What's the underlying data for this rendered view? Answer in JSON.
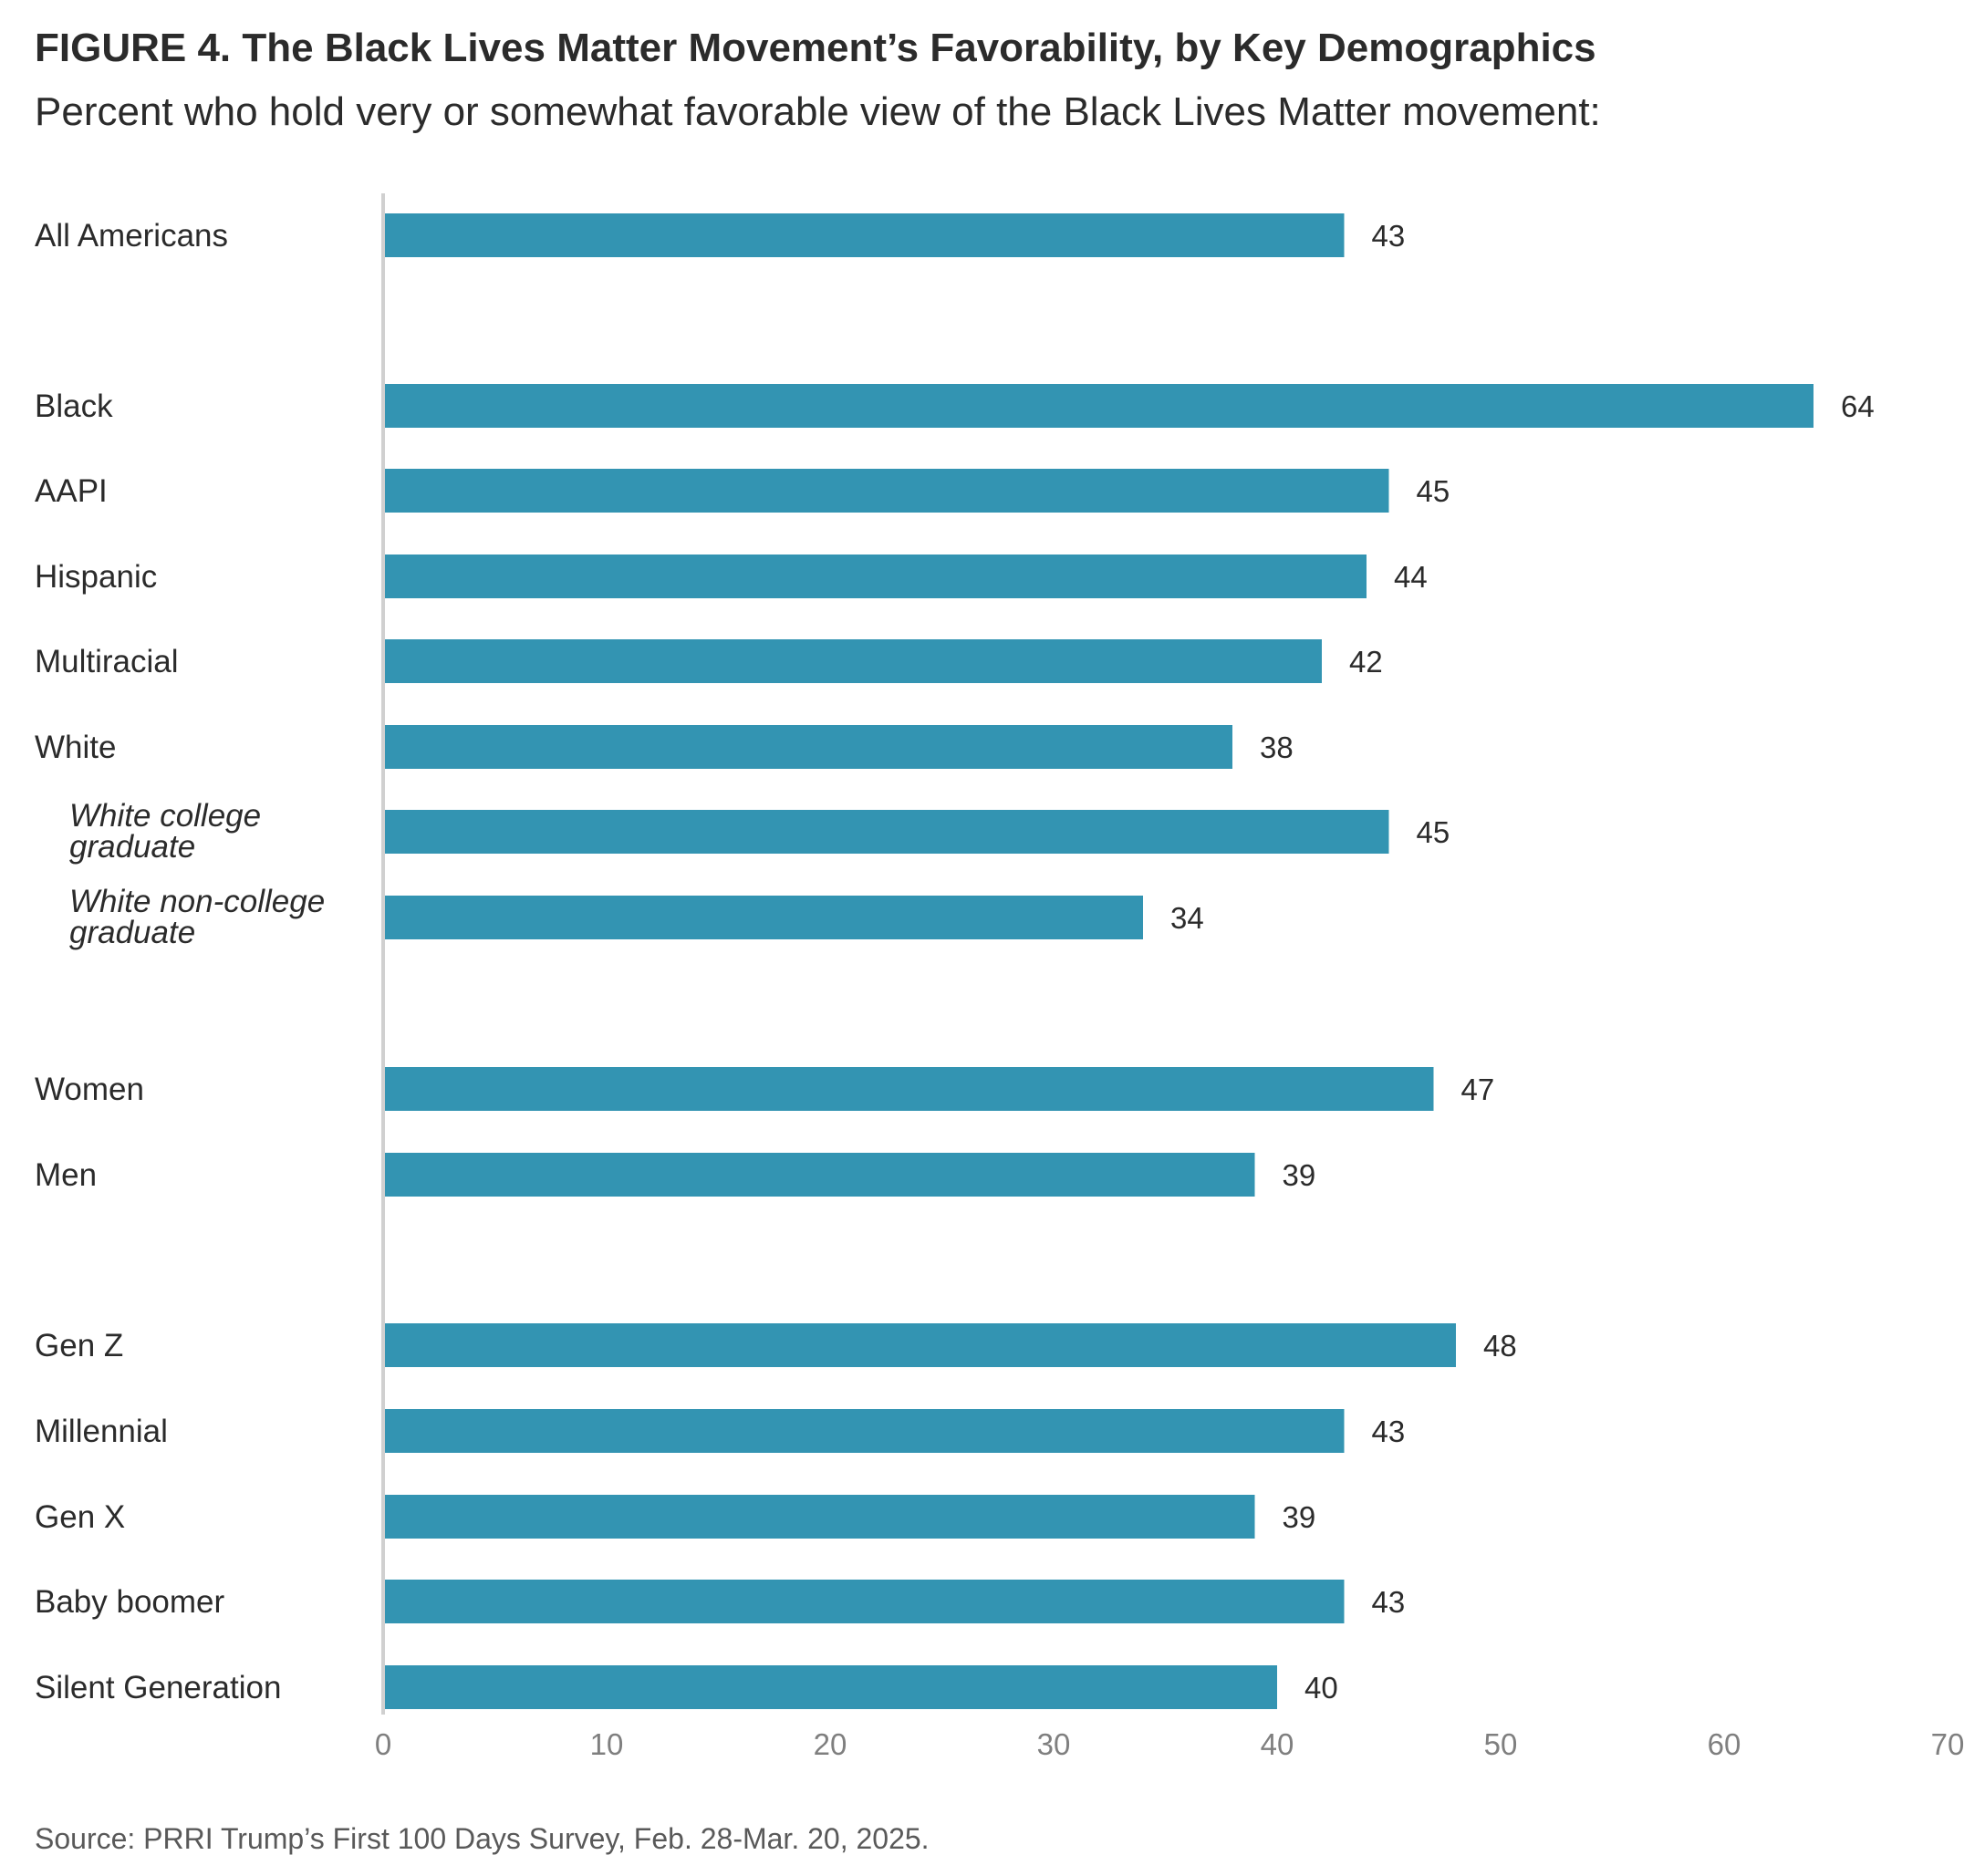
{
  "chart_data": {
    "type": "bar",
    "orientation": "horizontal",
    "title": "FIGURE 4. The Black Lives Matter Movement’s Favorability, by Key Demographics",
    "subtitle": "Percent who hold very or somewhat favorable view of the Black Lives Matter movement:",
    "source": "Source: PRRI Trump’s First 100 Days Survey, Feb. 28-Mar. 20, 2025.",
    "categories": [
      "All Americans",
      "Black",
      "AAPI",
      "Hispanic",
      "Multiracial",
      "White",
      "White college graduate",
      "White non-college graduate",
      "Women",
      "Men",
      "Gen Z",
      "Millennial",
      "Gen X",
      "Baby boomer",
      "Silent Generation"
    ],
    "values": [
      43,
      64,
      45,
      44,
      42,
      38,
      45,
      34,
      47,
      39,
      48,
      43,
      39,
      43,
      40
    ],
    "subgroup_categories": [
      "White college graduate",
      "White non-college graduate"
    ],
    "xlim": [
      0,
      70
    ],
    "xticks": [
      "0",
      "10",
      "20",
      "30",
      "40",
      "50",
      "60",
      "70"
    ],
    "bar_color": "#3394b2",
    "grid": false
  }
}
